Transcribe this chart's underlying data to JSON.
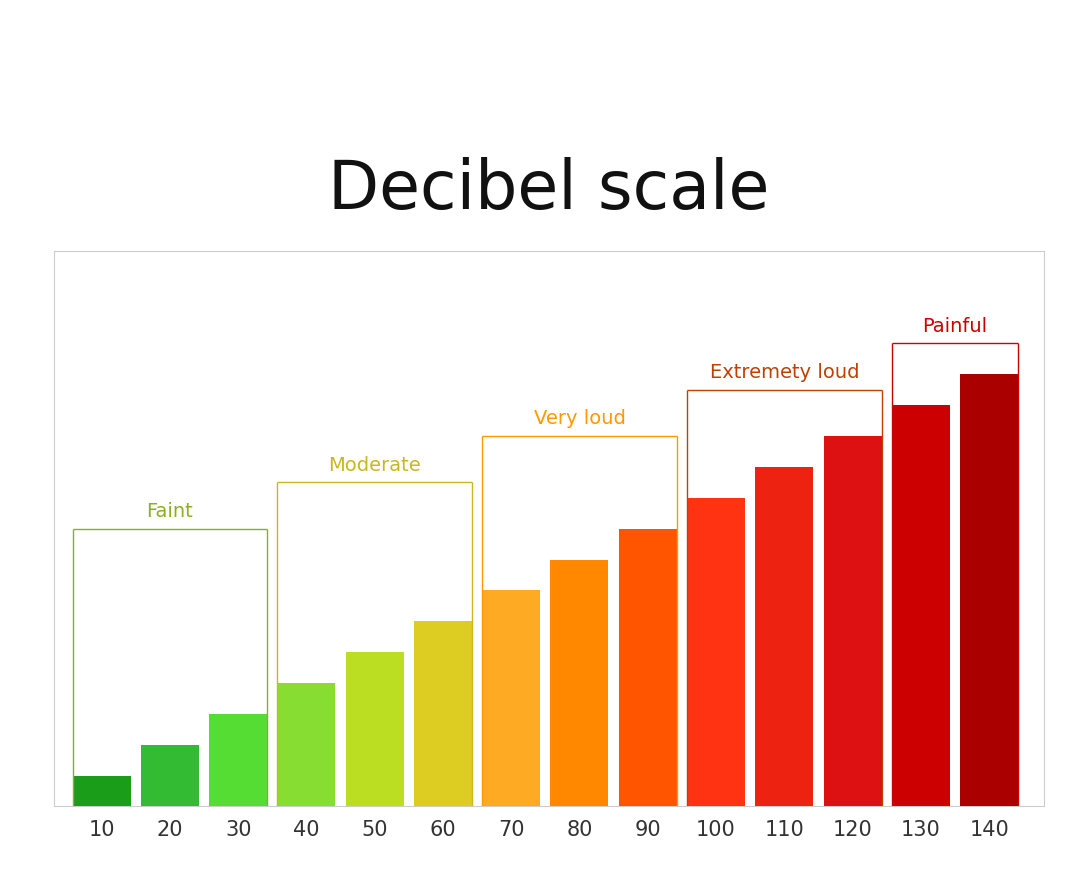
{
  "title": "Decibel scale",
  "title_fontsize": 48,
  "title_color": "#111111",
  "background_color": "#ffffff",
  "categories": [
    10,
    20,
    30,
    40,
    50,
    60,
    70,
    80,
    90,
    100,
    110,
    120,
    130,
    140
  ],
  "bar_heights": [
    1,
    2,
    3,
    4,
    5,
    6,
    7,
    8,
    9,
    10,
    11,
    12,
    13,
    14
  ],
  "bar_colors": [
    "#1a9e1a",
    "#33bb33",
    "#55dd33",
    "#88dd33",
    "#bbdd22",
    "#ddcc22",
    "#ffaa22",
    "#ff8800",
    "#ff5500",
    "#ff3311",
    "#ee2211",
    "#dd1111",
    "#cc0000",
    "#aa0000"
  ],
  "group_labels": [
    {
      "text": "Faint",
      "color": "#8ab020",
      "x_start": 10,
      "x_end": 30,
      "bracket_top": 9.0
    },
    {
      "text": "Moderate",
      "color": "#c8b820",
      "x_start": 40,
      "x_end": 60,
      "bracket_top": 10.5
    },
    {
      "text": "Very loud",
      "color": "#ff9900",
      "x_start": 70,
      "x_end": 90,
      "bracket_top": 12.0
    },
    {
      "text": "Extremety loud",
      "color": "#c04000",
      "x_start": 100,
      "x_end": 120,
      "bracket_top": 13.5
    },
    {
      "text": "Painful",
      "color": "#cc0000",
      "x_start": 130,
      "x_end": 140,
      "bracket_top": 15.0
    }
  ],
  "bar_width": 8.5,
  "ylim": [
    0,
    18
  ],
  "xlim": [
    3,
    148
  ]
}
